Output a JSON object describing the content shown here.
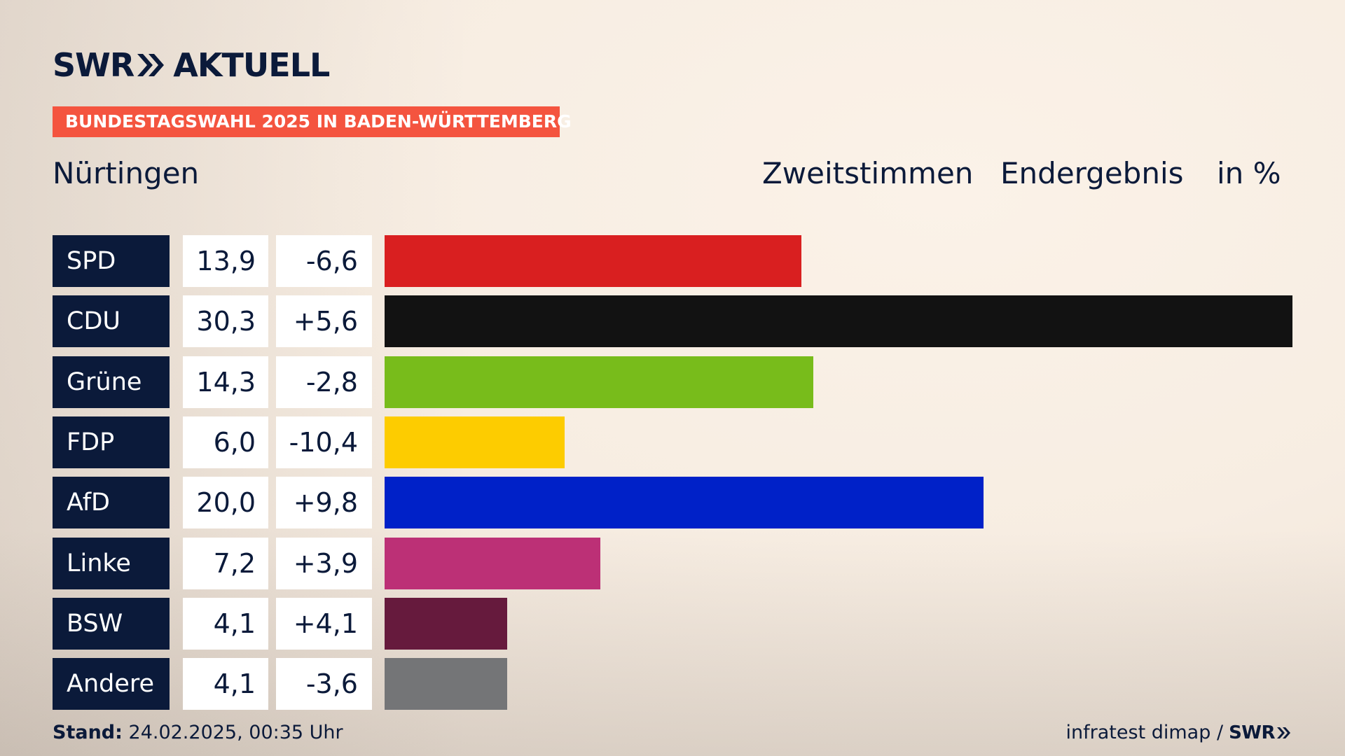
{
  "header": {
    "logo_brand": "SWR",
    "logo_product": "AKTUELL",
    "banner": "BUNDESTAGSWAHL 2025 IN BADEN-WÜRTTEMBERG",
    "region": "Nürtingen",
    "vote_type": "Zweitstimmen",
    "status": "Endergebnis",
    "unit": "in %"
  },
  "colors": {
    "navy": "#0b1a3a",
    "banner": "#f4543f"
  },
  "chart_data": {
    "type": "bar",
    "orientation": "horizontal",
    "title": "Nürtingen",
    "unit": "in %",
    "categories": [
      "SPD",
      "CDU",
      "Grüne",
      "FDP",
      "AfD",
      "Linke",
      "BSW",
      "Andere"
    ],
    "values": [
      13.9,
      30.3,
      14.3,
      6.0,
      20.0,
      7.2,
      4.1,
      4.1
    ],
    "value_labels": [
      "13,9",
      "30,3",
      "14,3",
      "6,0",
      "20,0",
      "7,2",
      "4,1",
      "4,1"
    ],
    "differences": [
      -6.6,
      5.6,
      -2.8,
      -10.4,
      9.8,
      3.9,
      4.1,
      -3.6
    ],
    "difference_labels": [
      "-6,6",
      "+5,6",
      "-2,8",
      "-10,4",
      "+9,8",
      "+3,9",
      "+4,1",
      "-3,6"
    ],
    "bar_colors": [
      "#d91f20",
      "#121212",
      "#78bc1b",
      "#fdcc00",
      "#0021c8",
      "#bc3076",
      "#661a3d",
      "#747577"
    ],
    "xlim": [
      0,
      30.3
    ]
  },
  "footer": {
    "stand_label": "Stand:",
    "stand_value": "24.02.2025, 00:35 Uhr",
    "source": "infratest dimap /",
    "source_logo": "SWR"
  }
}
